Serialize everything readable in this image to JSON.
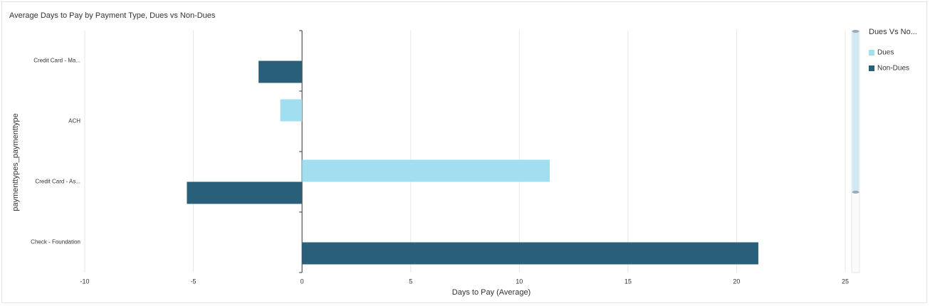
{
  "chart_data": {
    "type": "hbar",
    "title": "Average Days to Pay by Payment Type, Dues vs Non-Dues",
    "x_label": "Days to Pay (Average)",
    "y_label": "paymenttypes_paymenttype",
    "legend_title": "Dues Vs No...",
    "categories": [
      "Credit Card - Ma...",
      "ACH",
      "Credit Card - As...",
      "Check - Foundation"
    ],
    "series": [
      {
        "name": "Dues",
        "color": "#a1dff0",
        "values": [
          null,
          -1.0,
          11.4,
          null
        ]
      },
      {
        "name": "Non-Dues",
        "color": "#2a5f7a",
        "values": [
          -2.0,
          null,
          -5.3,
          21.0
        ]
      }
    ],
    "xlim": [
      -10,
      25
    ],
    "xticks": [
      -10,
      -5,
      0,
      5,
      10,
      15,
      20,
      25
    ],
    "grid": true
  }
}
